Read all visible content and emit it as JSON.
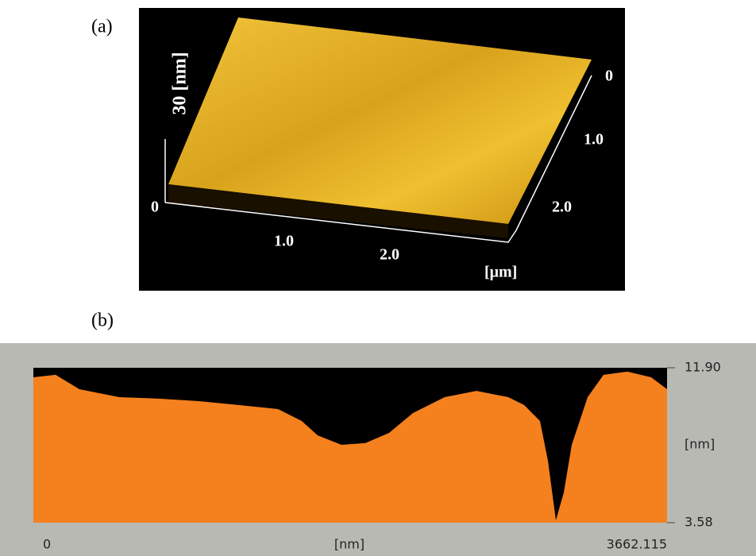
{
  "panel_a": {
    "label": "(a)",
    "z_label": "30 [nm]",
    "z_zero": "0",
    "x_ticks": [
      "1.0",
      "2.0"
    ],
    "x_unit": "[μm]",
    "y_ticks": [
      "0",
      "1.0",
      "2.0"
    ]
  },
  "chart_data": {
    "type": "area",
    "title": "(b)",
    "x_label": "[nm]",
    "y_label": "[nm]",
    "color": "#f5801e",
    "x": [
      0,
      128.5,
      266.2,
      495.6,
      725.1,
      954.5,
      1184.0,
      1413.4,
      1551.1,
      1642.9,
      1780.6,
      1918.2,
      2055.9,
      2193.6,
      2377.1,
      2560.7,
      2744.3,
      2836.0,
      2927.8,
      2973.7,
      3019.6,
      3065.5,
      3111.4,
      3203.2,
      3294.9,
      3432.6,
      3570.3,
      3662.1
    ],
    "values": [
      11.39,
      11.52,
      10.75,
      10.32,
      10.24,
      10.11,
      9.9,
      9.68,
      9.04,
      8.27,
      7.76,
      7.85,
      8.4,
      9.47,
      10.32,
      10.66,
      10.32,
      9.9,
      9.04,
      6.91,
      3.71,
      5.2,
      7.76,
      10.32,
      11.52,
      11.69,
      11.39,
      10.75
    ],
    "xlim": [
      0,
      3662.115
    ],
    "xticks": [
      0,
      3662.115
    ],
    "ylim": [
      3.58,
      11.9
    ],
    "yticks": [
      {
        "value": 11.9,
        "label": "11.90"
      },
      3.58
    ]
  }
}
